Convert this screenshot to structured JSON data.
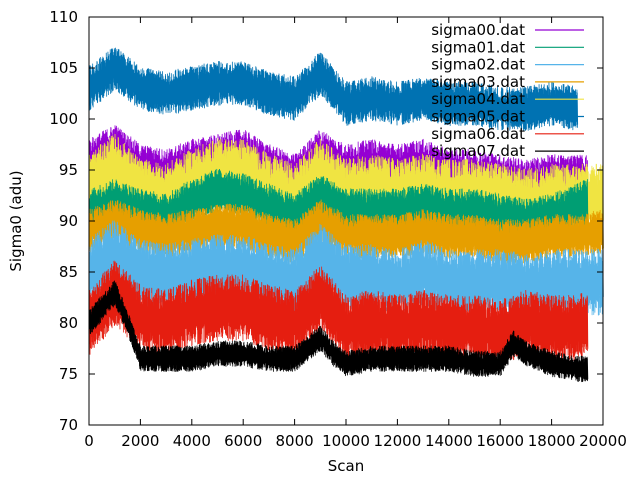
{
  "chart_data": {
    "type": "line",
    "title": "",
    "xlabel": "Scan",
    "ylabel": "Sigma0 (adu)",
    "xlim": [
      0,
      20000
    ],
    "ylim": [
      70,
      110
    ],
    "x_ticks": [
      0,
      2000,
      4000,
      6000,
      8000,
      10000,
      12000,
      14000,
      16000,
      18000,
      20000
    ],
    "y_ticks": [
      70,
      75,
      80,
      85,
      90,
      95,
      100,
      105,
      110
    ],
    "x_tick_labels": [
      "0",
      "2000",
      "4000",
      "6000",
      "8000",
      "10000",
      "12000",
      "14000",
      "16000",
      "18000",
      "20000"
    ],
    "y_tick_labels": [
      "70",
      "75",
      "80",
      "85",
      "90",
      "95",
      "100",
      "105",
      "110"
    ],
    "grid": false,
    "legend_position": "top-right",
    "x_end": 19400,
    "series": [
      {
        "name": "sigma00.dat",
        "color": "#9400d3",
        "noise": 1.4,
        "x": [
          0,
          1000,
          2000,
          3000,
          4000,
          5000,
          6000,
          7000,
          8000,
          9000,
          10000,
          11000,
          12000,
          13000,
          14000,
          15000,
          16000,
          17000,
          18000,
          19000,
          19400
        ],
        "y": [
          95.5,
          97,
          95,
          94.5,
          95.5,
          96,
          96.5,
          95,
          94,
          96.5,
          95,
          95.5,
          95,
          95.5,
          94.5,
          94.5,
          94,
          93.5,
          94,
          94,
          94
        ]
      },
      {
        "name": "sigma01.dat",
        "color": "#009e73",
        "noise": 1.2,
        "x": [
          0,
          1000,
          2000,
          3000,
          4000,
          5000,
          6000,
          7000,
          8000,
          9000,
          10000,
          11000,
          12000,
          13000,
          14000,
          15000,
          16000,
          17000,
          18000,
          19000,
          19400
        ],
        "y": [
          91,
          92,
          91,
          90.5,
          92,
          93,
          92.5,
          91.5,
          90.5,
          92.5,
          91,
          91,
          91,
          91.5,
          91,
          91,
          90.5,
          90,
          90.5,
          91.5,
          92
        ]
      },
      {
        "name": "sigma02.dat",
        "color": "#56b4e9",
        "noise": 1.8,
        "x": [
          0,
          1000,
          2000,
          3000,
          4000,
          5000,
          6000,
          7000,
          8000,
          9000,
          10000,
          11000,
          12000,
          13000,
          14000,
          15000,
          16000,
          17000,
          18000,
          19000,
          20000
        ],
        "y": [
          85,
          87,
          85,
          84.5,
          85,
          85.5,
          85.5,
          84.5,
          84,
          86.5,
          84.5,
          84.5,
          84,
          85,
          84,
          84,
          84,
          83.5,
          84,
          84,
          84
        ]
      },
      {
        "name": "sigma03.dat",
        "color": "#e69f00",
        "noise": 1.2,
        "x": [
          0,
          1000,
          2000,
          3000,
          4000,
          5000,
          6000,
          7000,
          8000,
          9000,
          10000,
          11000,
          12000,
          13000,
          14000,
          15000,
          16000,
          17000,
          18000,
          19000,
          20000
        ],
        "y": [
          89,
          90,
          89,
          88.5,
          89,
          89.5,
          89.5,
          88.5,
          88,
          90,
          88.5,
          88.5,
          88.5,
          89,
          88.5,
          88.5,
          88,
          88,
          88.5,
          88.5,
          89
        ]
      },
      {
        "name": "sigma04.dat",
        "color": "#f0e442",
        "noise": 2.0,
        "x": [
          0,
          1000,
          2000,
          3000,
          4000,
          5000,
          6000,
          7000,
          8000,
          9000,
          10000,
          11000,
          12000,
          13000,
          14000,
          15000,
          16000,
          17000,
          18000,
          19000,
          20000
        ],
        "y": [
          93,
          95,
          92.5,
          92,
          93.5,
          94.5,
          94.5,
          93,
          92,
          94.5,
          92.5,
          93,
          92.5,
          93,
          92.5,
          92.5,
          92,
          91.5,
          92,
          92,
          92
        ]
      },
      {
        "name": "sigma05.dat",
        "color": "#0072b2",
        "noise": 1.2,
        "x": [
          0,
          1000,
          2000,
          3000,
          4000,
          5000,
          6000,
          7000,
          8000,
          9000,
          10000,
          11000,
          12000,
          13000,
          14000,
          15000,
          16000,
          17000,
          18000,
          19000
        ],
        "y": [
          103,
          105,
          103,
          102.5,
          103,
          103.5,
          103.5,
          102.5,
          102,
          104.5,
          101.5,
          102,
          101.5,
          102,
          101.5,
          101.5,
          101,
          101,
          101.5,
          101
        ]
      },
      {
        "name": "sigma06.dat",
        "color": "#e51e10",
        "noise": 1.8,
        "x": [
          0,
          1000,
          2000,
          3000,
          4000,
          5000,
          6000,
          7000,
          8000,
          9000,
          10000,
          11000,
          12000,
          13000,
          14000,
          15000,
          16000,
          17000,
          18000,
          19000,
          19400
        ],
        "y": [
          80,
          83,
          80.5,
          80,
          81,
          81.5,
          81.5,
          80.5,
          80,
          82.5,
          79.5,
          80,
          79.5,
          80,
          79.5,
          79.5,
          79,
          80,
          79.5,
          79.5,
          80
        ]
      },
      {
        "name": "sigma07.dat",
        "color": "#000000",
        "noise": 0.7,
        "x": [
          0,
          1000,
          1500,
          2000,
          3000,
          4000,
          5000,
          6000,
          7000,
          8000,
          9000,
          9500,
          10000,
          11000,
          12000,
          13000,
          14000,
          15000,
          16000,
          16500,
          17000,
          18000,
          19000,
          19400
        ],
        "y": [
          80,
          83,
          80,
          76.5,
          76.5,
          76.5,
          77,
          77,
          76.5,
          76.5,
          78.5,
          77,
          76,
          76.5,
          76.5,
          76.5,
          76.5,
          76,
          76,
          78,
          77,
          76,
          75.5,
          75.5
        ]
      }
    ]
  }
}
